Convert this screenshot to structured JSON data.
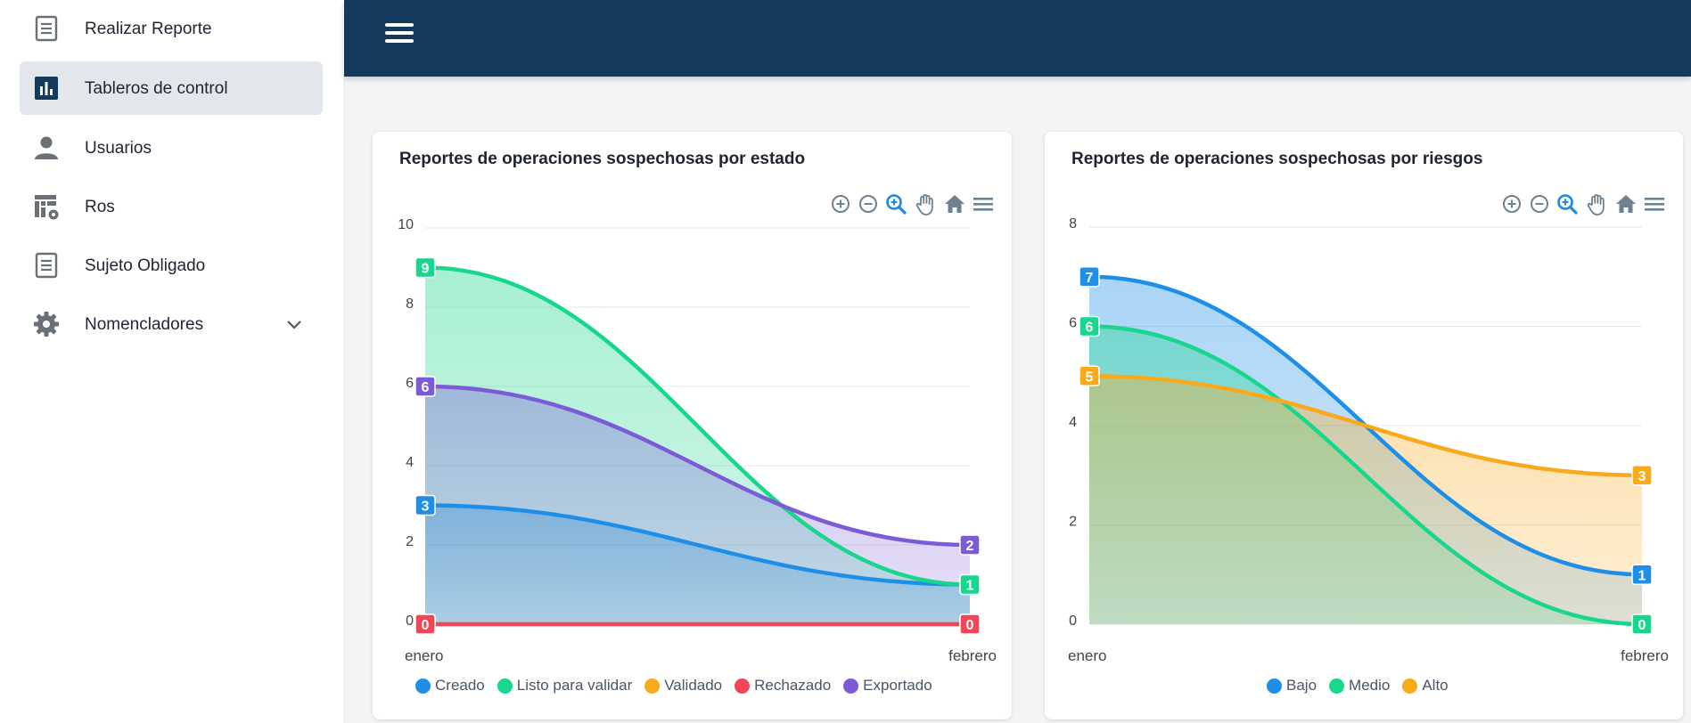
{
  "sidebar": {
    "items": [
      {
        "label": "Realizar Reporte",
        "icon": "document-icon"
      },
      {
        "label": "Tableros de control",
        "icon": "bar-chart-icon"
      },
      {
        "label": "Usuarios",
        "icon": "user-icon"
      },
      {
        "label": "Ros",
        "icon": "table-settings-icon"
      },
      {
        "label": "Sujeto Obligado",
        "icon": "document-icon"
      },
      {
        "label": "Nomencladores",
        "icon": "gear-icon"
      }
    ],
    "active_index": 1
  },
  "colors": {
    "topbar": "#13395c",
    "active_bg": "#e3e7ec"
  },
  "toolbar_icons": [
    "zoom-in-icon",
    "zoom-out-icon",
    "selection-zoom-icon",
    "pan-icon",
    "home-icon",
    "menu-icon"
  ],
  "chart_data": [
    {
      "type": "area",
      "title": "Reportes de operaciones sospechosas por estado",
      "categories": [
        "enero",
        "febrero"
      ],
      "ylim": [
        0,
        10
      ],
      "yticks": [
        0,
        2,
        4,
        6,
        8,
        10
      ],
      "grid": true,
      "legend": "bottom",
      "series": [
        {
          "name": "Creado",
          "values": [
            3,
            1
          ],
          "color": "#1e8fe8"
        },
        {
          "name": "Listo para validar",
          "values": [
            9,
            1
          ],
          "color": "#18d68c"
        },
        {
          "name": "Validado",
          "values": [
            0,
            0
          ],
          "color": "#f8a91c"
        },
        {
          "name": "Rechazado",
          "values": [
            0,
            0
          ],
          "color": "#f04658"
        },
        {
          "name": "Exportado",
          "values": [
            6,
            2
          ],
          "color": "#7b5bd6"
        }
      ]
    },
    {
      "type": "area",
      "title": "Reportes de operaciones sospechosas por riesgos",
      "categories": [
        "enero",
        "febrero"
      ],
      "ylim": [
        0,
        8
      ],
      "yticks": [
        0,
        2,
        4,
        6,
        8
      ],
      "grid": true,
      "legend": "bottom",
      "series": [
        {
          "name": "Bajo",
          "values": [
            7,
            1
          ],
          "color": "#1e8fe8"
        },
        {
          "name": "Medio",
          "values": [
            6,
            0
          ],
          "color": "#18d68c"
        },
        {
          "name": "Alto",
          "values": [
            5,
            3
          ],
          "color": "#f8a91c"
        }
      ]
    }
  ]
}
